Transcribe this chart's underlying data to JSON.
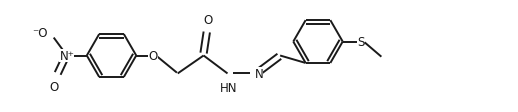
{
  "background": "#ffffff",
  "line_color": "#1a1a1a",
  "line_width": 1.4,
  "font_size": 8.5,
  "figsize": [
    5.18,
    1.13
  ],
  "dpi": 100,
  "xlim": [
    0.0,
    10.4
  ],
  "ylim": [
    -0.5,
    2.3
  ]
}
